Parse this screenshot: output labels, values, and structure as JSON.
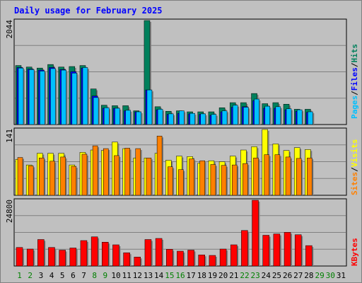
{
  "title": "Daily usage for February 2025",
  "colors": {
    "hits": "#00805c",
    "files": "#0000ff",
    "pages": "#00c0ff",
    "sites": "#ff8000",
    "visits": "#ffff00",
    "kbytes": "#ff0000",
    "weekday": "#000000",
    "weekend": "#008000"
  },
  "chart_data": [
    {
      "type": "bar",
      "name_key": "usage",
      "ymax_label": "2044",
      "ylim": [
        0,
        2044
      ],
      "x": [
        "1",
        "2",
        "3",
        "4",
        "5",
        "6",
        "7",
        "8",
        "9",
        "10",
        "11",
        "12",
        "13",
        "14",
        "15",
        "16",
        "17",
        "18",
        "19",
        "20",
        "21",
        "22",
        "23",
        "24",
        "25",
        "26",
        "27",
        "28",
        "29",
        "30",
        "31"
      ],
      "weekend": [
        1,
        2,
        8,
        9,
        15,
        16,
        22,
        23,
        29,
        30
      ],
      "series": [
        {
          "name": "Hits",
          "values": [
            1160,
            1130,
            1110,
            1180,
            1130,
            1140,
            1160,
            700,
            380,
            370,
            370,
            270,
            2044,
            350,
            260,
            270,
            250,
            250,
            250,
            330,
            430,
            430,
            610,
            410,
            430,
            400,
            300,
            300,
            null,
            null,
            null
          ]
        },
        {
          "name": "Files",
          "values": [
            1120,
            1090,
            1070,
            1120,
            1080,
            1040,
            1110,
            560,
            320,
            320,
            270,
            250,
            680,
            290,
            200,
            220,
            210,
            200,
            180,
            250,
            340,
            350,
            470,
            320,
            320,
            290,
            260,
            240,
            null,
            null,
            null
          ]
        },
        {
          "name": "Pages",
          "values": [
            1110,
            1080,
            1050,
            1100,
            1070,
            1010,
            1120,
            530,
            330,
            320,
            280,
            250,
            680,
            300,
            210,
            270,
            220,
            210,
            200,
            270,
            380,
            340,
            500,
            360,
            350,
            310,
            290,
            250,
            null,
            null,
            null
          ]
        }
      ],
      "legend": [
        "Pages",
        "Files",
        "Hits"
      ]
    },
    {
      "type": "bar",
      "ymax_label": "141",
      "ylim": [
        0,
        141
      ],
      "series": [
        {
          "name": "Visits",
          "values": [
            77,
            65,
            90,
            90,
            90,
            65,
            92,
            97,
            96,
            114,
            100,
            80,
            80,
            90,
            75,
            84,
            83,
            69,
            74,
            72,
            84,
            97,
            104,
            141,
            110,
            96,
            102,
            98,
            null,
            null,
            null
          ]
        },
        {
          "name": "Sites",
          "values": [
            81,
            63,
            80,
            73,
            82,
            62,
            88,
            106,
            100,
            85,
            101,
            100,
            80,
            127,
            61,
            55,
            78,
            74,
            66,
            64,
            65,
            68,
            80,
            87,
            87,
            82,
            79,
            80,
            null,
            null,
            null
          ]
        }
      ],
      "legend": [
        "Sites",
        "Visits"
      ]
    },
    {
      "type": "bar",
      "ymax_label": "24800",
      "ylim": [
        0,
        24800
      ],
      "series": [
        {
          "name": "KBytes",
          "values": [
            7000,
            6400,
            10000,
            7000,
            6000,
            6800,
            9600,
            11000,
            9000,
            8000,
            5000,
            3400,
            10000,
            10400,
            6300,
            5600,
            6000,
            4200,
            4000,
            6400,
            8000,
            13400,
            24800,
            11600,
            12100,
            12700,
            11800,
            7700,
            null,
            null,
            null
          ]
        }
      ],
      "legend": [
        "KBytes"
      ]
    }
  ]
}
